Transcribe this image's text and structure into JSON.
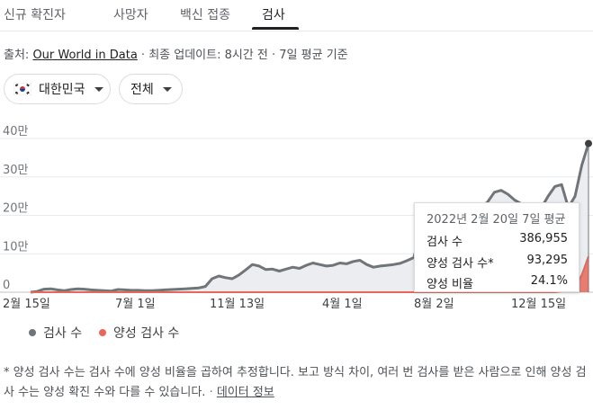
{
  "tabs": [
    {
      "label": "신규 확진자"
    },
    {
      "label": "사망자"
    },
    {
      "label": "백신 접종"
    },
    {
      "label": "검사"
    }
  ],
  "source": {
    "prefix": "출처: ",
    "link": "Our World in Data",
    "suffix": " · 최종 업데이트: 8시간 전 · 7일 평균 기준"
  },
  "filters": {
    "region": "대한민국",
    "scope": "전체"
  },
  "chart_data": {
    "type": "area",
    "x_ticks": [
      "2월 15일",
      "7월 1일",
      "11월 13일",
      "4월 1일",
      "8월 2일",
      "12월 15일"
    ],
    "y_ticks": [
      "0",
      "10만",
      "20만",
      "30만",
      "40만"
    ],
    "ylim": [
      0,
      400000
    ],
    "legend_position": "bottom-left",
    "series": [
      {
        "name": "검사 수",
        "color": "#70757a",
        "values": [
          0,
          2000,
          8000,
          9000,
          6000,
          4000,
          7000,
          9000,
          8000,
          6000,
          5000,
          4000,
          3000,
          7000,
          6000,
          5000,
          5000,
          4000,
          4000,
          5000,
          6000,
          7000,
          8000,
          9000,
          10000,
          11000,
          15000,
          35000,
          42000,
          38000,
          35000,
          45000,
          58000,
          72000,
          68000,
          59000,
          60000,
          55000,
          60000,
          65000,
          62000,
          70000,
          76000,
          72000,
          68000,
          70000,
          76000,
          74000,
          80000,
          83000,
          72000,
          65000,
          68000,
          70000,
          72000,
          75000,
          82000,
          90000,
          150000,
          215000,
          230000,
          195000,
          180000,
          150000,
          175000,
          205000,
          210000,
          220000,
          235000,
          260000,
          265000,
          255000,
          240000,
          230000,
          225000,
          210000,
          220000,
          250000,
          275000,
          280000,
          220000,
          250000,
          330000,
          386955
        ]
      },
      {
        "name": "양성 검사 수",
        "color": "#e8675a",
        "values": [
          0,
          0,
          0,
          0,
          0,
          0,
          0,
          0,
          0,
          0,
          0,
          0,
          0,
          0,
          0,
          0,
          0,
          0,
          0,
          0,
          0,
          0,
          0,
          0,
          0,
          0,
          0,
          0,
          0,
          0,
          0,
          0,
          0,
          0,
          0,
          0,
          0,
          0,
          0,
          0,
          0,
          0,
          0,
          0,
          0,
          0,
          0,
          0,
          0,
          0,
          0,
          0,
          0,
          0,
          0,
          0,
          0,
          0,
          0,
          0,
          0,
          0,
          0,
          0,
          0,
          0,
          0,
          0,
          0,
          0,
          0,
          0,
          0,
          0,
          0,
          0,
          0,
          0,
          0,
          2000,
          5000,
          15000,
          45000,
          93295
        ]
      }
    ],
    "highlight": {
      "date": "2022년 2월 20일 7일 평균",
      "rows": [
        {
          "label": "검사 수",
          "value": "386,955"
        },
        {
          "label": "양성 검사 수*",
          "value": "93,295"
        },
        {
          "label": "양성 비율",
          "value": "24.1%"
        }
      ]
    }
  },
  "footnote": {
    "text": "* 양성 검사 수는 검사 수에 양성 비율을 곱하여 추정합니다. 보고 방식 차이, 여러 번 검사를 받은 사람으로 인해 양성 검사 수는 양성 확진 수와 다를 수 있습니다.",
    "link": "데이터 정보"
  }
}
